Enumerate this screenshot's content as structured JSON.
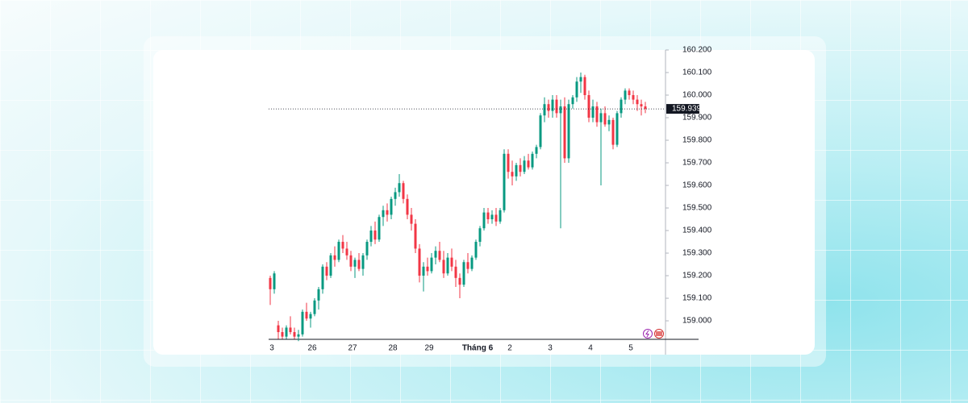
{
  "chart_data": {
    "type": "candlestick",
    "ylim": [
      158.918,
      160.2
    ],
    "yticks": [
      {
        "value": 159,
        "label": "159.000"
      },
      {
        "value": 159.1,
        "label": "159.100"
      },
      {
        "value": 159.2,
        "label": "159.200"
      },
      {
        "value": 159.3,
        "label": "159.300"
      },
      {
        "value": 159.4,
        "label": "159.400"
      },
      {
        "value": 159.5,
        "label": "159.500"
      },
      {
        "value": 159.6,
        "label": "159.600"
      },
      {
        "value": 159.7,
        "label": "159.700"
      },
      {
        "value": 159.8,
        "label": "159.800"
      },
      {
        "value": 159.9,
        "label": "159.900"
      },
      {
        "value": 160,
        "label": "160.000"
      },
      {
        "value": 160.1,
        "label": "160.100"
      },
      {
        "value": 160.2,
        "label": "160.200"
      }
    ],
    "categories": [
      "3",
      null,
      null,
      null,
      null,
      null,
      null,
      null,
      null,
      null,
      "26",
      null,
      null,
      null,
      null,
      null,
      null,
      null,
      null,
      null,
      "27",
      null,
      null,
      null,
      null,
      null,
      null,
      null,
      null,
      null,
      "28",
      null,
      null,
      null,
      null,
      null,
      null,
      null,
      null,
      "29",
      null,
      null,
      null,
      null,
      null,
      null,
      null,
      null,
      null,
      null,
      null,
      "Tháng 6",
      null,
      null,
      null,
      null,
      null,
      null,
      null,
      "2",
      null,
      null,
      null,
      null,
      null,
      null,
      null,
      null,
      null,
      "3",
      null,
      null,
      null,
      null,
      null,
      null,
      null,
      null,
      null,
      "4",
      null,
      null,
      null,
      null,
      null,
      null,
      null,
      null,
      null,
      "5",
      null,
      null,
      null,
      null
    ],
    "up_color": "#089981",
    "down_color": "#f23645",
    "last_price": 159.939,
    "ohlc": [
      [
        159.19,
        159.2,
        159.07,
        159.14
      ],
      [
        159.14,
        159.22,
        159.12,
        159.21
      ],
      [
        158.98,
        159.0,
        158.92,
        158.95
      ],
      [
        158.95,
        158.97,
        158.92,
        158.93
      ],
      [
        158.93,
        158.98,
        158.92,
        158.97
      ],
      [
        158.97,
        159.02,
        158.94,
        158.95
      ],
      [
        158.95,
        158.97,
        158.92,
        158.93
      ],
      [
        158.93,
        158.96,
        158.91,
        158.94
      ],
      [
        158.94,
        159.05,
        158.93,
        159.04
      ],
      [
        159.04,
        159.08,
        159.0,
        159.01
      ],
      [
        159.01,
        159.04,
        158.97,
        159.03
      ],
      [
        159.03,
        159.1,
        159.02,
        159.09
      ],
      [
        159.09,
        159.15,
        159.05,
        159.14
      ],
      [
        159.14,
        159.25,
        159.12,
        159.24
      ],
      [
        159.24,
        159.26,
        159.18,
        159.2
      ],
      [
        159.2,
        159.3,
        159.19,
        159.29
      ],
      [
        159.29,
        159.33,
        159.24,
        159.27
      ],
      [
        159.27,
        159.36,
        159.26,
        159.35
      ],
      [
        159.35,
        159.38,
        159.3,
        159.32
      ],
      [
        159.32,
        159.35,
        159.27,
        159.29
      ],
      [
        159.29,
        159.31,
        159.22,
        159.24
      ],
      [
        159.24,
        159.28,
        159.19,
        159.27
      ],
      [
        159.27,
        159.3,
        159.22,
        159.23
      ],
      [
        159.23,
        159.3,
        159.2,
        159.29
      ],
      [
        159.29,
        159.36,
        159.27,
        159.35
      ],
      [
        159.35,
        159.42,
        159.33,
        159.4
      ],
      [
        159.4,
        159.44,
        159.34,
        159.36
      ],
      [
        159.36,
        159.47,
        159.35,
        159.46
      ],
      [
        159.46,
        159.51,
        159.42,
        159.49
      ],
      [
        159.49,
        159.52,
        159.44,
        159.47
      ],
      [
        159.47,
        159.55,
        159.45,
        159.54
      ],
      [
        159.54,
        159.59,
        159.51,
        159.57
      ],
      [
        159.57,
        159.65,
        159.55,
        159.61
      ],
      [
        159.61,
        159.62,
        159.52,
        159.54
      ],
      [
        159.54,
        159.56,
        159.45,
        159.47
      ],
      [
        159.47,
        159.5,
        159.4,
        159.43
      ],
      [
        159.43,
        159.45,
        159.3,
        159.32
      ],
      [
        159.32,
        159.34,
        159.17,
        159.2
      ],
      [
        159.2,
        159.26,
        159.13,
        159.24
      ],
      [
        159.24,
        159.28,
        159.2,
        159.22
      ],
      [
        159.22,
        159.3,
        159.21,
        159.28
      ],
      [
        159.28,
        159.33,
        159.25,
        159.31
      ],
      [
        159.31,
        159.35,
        159.26,
        159.27
      ],
      [
        159.27,
        159.31,
        159.19,
        159.21
      ],
      [
        159.21,
        159.3,
        159.2,
        159.28
      ],
      [
        159.28,
        159.32,
        159.22,
        159.24
      ],
      [
        159.24,
        159.27,
        159.15,
        159.19
      ],
      [
        159.19,
        159.21,
        159.1,
        159.16
      ],
      [
        159.16,
        159.27,
        159.15,
        159.26
      ],
      [
        159.26,
        159.3,
        159.21,
        159.23
      ],
      [
        159.23,
        159.29,
        159.22,
        159.28
      ],
      [
        159.28,
        159.36,
        159.27,
        159.35
      ],
      [
        159.35,
        159.42,
        159.33,
        159.41
      ],
      [
        159.41,
        159.5,
        159.4,
        159.48
      ],
      [
        159.48,
        159.5,
        159.43,
        159.45
      ],
      [
        159.45,
        159.49,
        159.43,
        159.47
      ],
      [
        159.47,
        159.5,
        159.42,
        159.44
      ],
      [
        159.44,
        159.5,
        159.43,
        159.49
      ],
      [
        159.49,
        159.76,
        159.48,
        159.74
      ],
      [
        159.74,
        159.76,
        159.63,
        159.66
      ],
      [
        159.66,
        159.71,
        159.6,
        159.64
      ],
      [
        159.64,
        159.7,
        159.62,
        159.69
      ],
      [
        159.69,
        159.72,
        159.64,
        159.66
      ],
      [
        159.66,
        159.73,
        159.65,
        159.71
      ],
      [
        159.71,
        159.74,
        159.67,
        159.68
      ],
      [
        159.68,
        159.75,
        159.67,
        159.74
      ],
      [
        159.74,
        159.78,
        159.72,
        159.77
      ],
      [
        159.77,
        159.92,
        159.76,
        159.91
      ],
      [
        159.91,
        159.99,
        159.88,
        159.96
      ],
      [
        159.96,
        159.98,
        159.9,
        159.93
      ],
      [
        159.93,
        160.0,
        159.9,
        159.98
      ],
      [
        159.98,
        160.0,
        159.9,
        159.92
      ],
      [
        159.92,
        159.98,
        159.41,
        159.95
      ],
      [
        159.95,
        159.99,
        159.7,
        159.72
      ],
      [
        159.72,
        159.98,
        159.7,
        159.96
      ],
      [
        159.96,
        160.0,
        159.94,
        159.99
      ],
      [
        159.99,
        160.08,
        159.97,
        160.06
      ],
      [
        160.06,
        160.1,
        160.01,
        160.08
      ],
      [
        160.08,
        160.09,
        159.98,
        160.0
      ],
      [
        160.0,
        160.02,
        159.88,
        159.9
      ],
      [
        159.9,
        159.98,
        159.88,
        159.95
      ],
      [
        159.95,
        159.97,
        159.86,
        159.88
      ],
      [
        159.88,
        159.94,
        159.6,
        159.92
      ],
      [
        159.92,
        159.95,
        159.86,
        159.87
      ],
      [
        159.87,
        159.91,
        159.84,
        159.89
      ],
      [
        159.89,
        159.9,
        159.76,
        159.78
      ],
      [
        159.78,
        159.93,
        159.77,
        159.92
      ],
      [
        159.92,
        159.99,
        159.9,
        159.98
      ],
      [
        159.98,
        160.03,
        159.96,
        160.02
      ],
      [
        160.02,
        160.03,
        159.98,
        160.0
      ],
      [
        160.0,
        160.02,
        159.96,
        159.98
      ],
      [
        159.98,
        160.0,
        159.93,
        159.96
      ],
      [
        159.96,
        159.98,
        159.91,
        159.95
      ],
      [
        159.95,
        159.97,
        159.92,
        159.939
      ]
    ]
  }
}
